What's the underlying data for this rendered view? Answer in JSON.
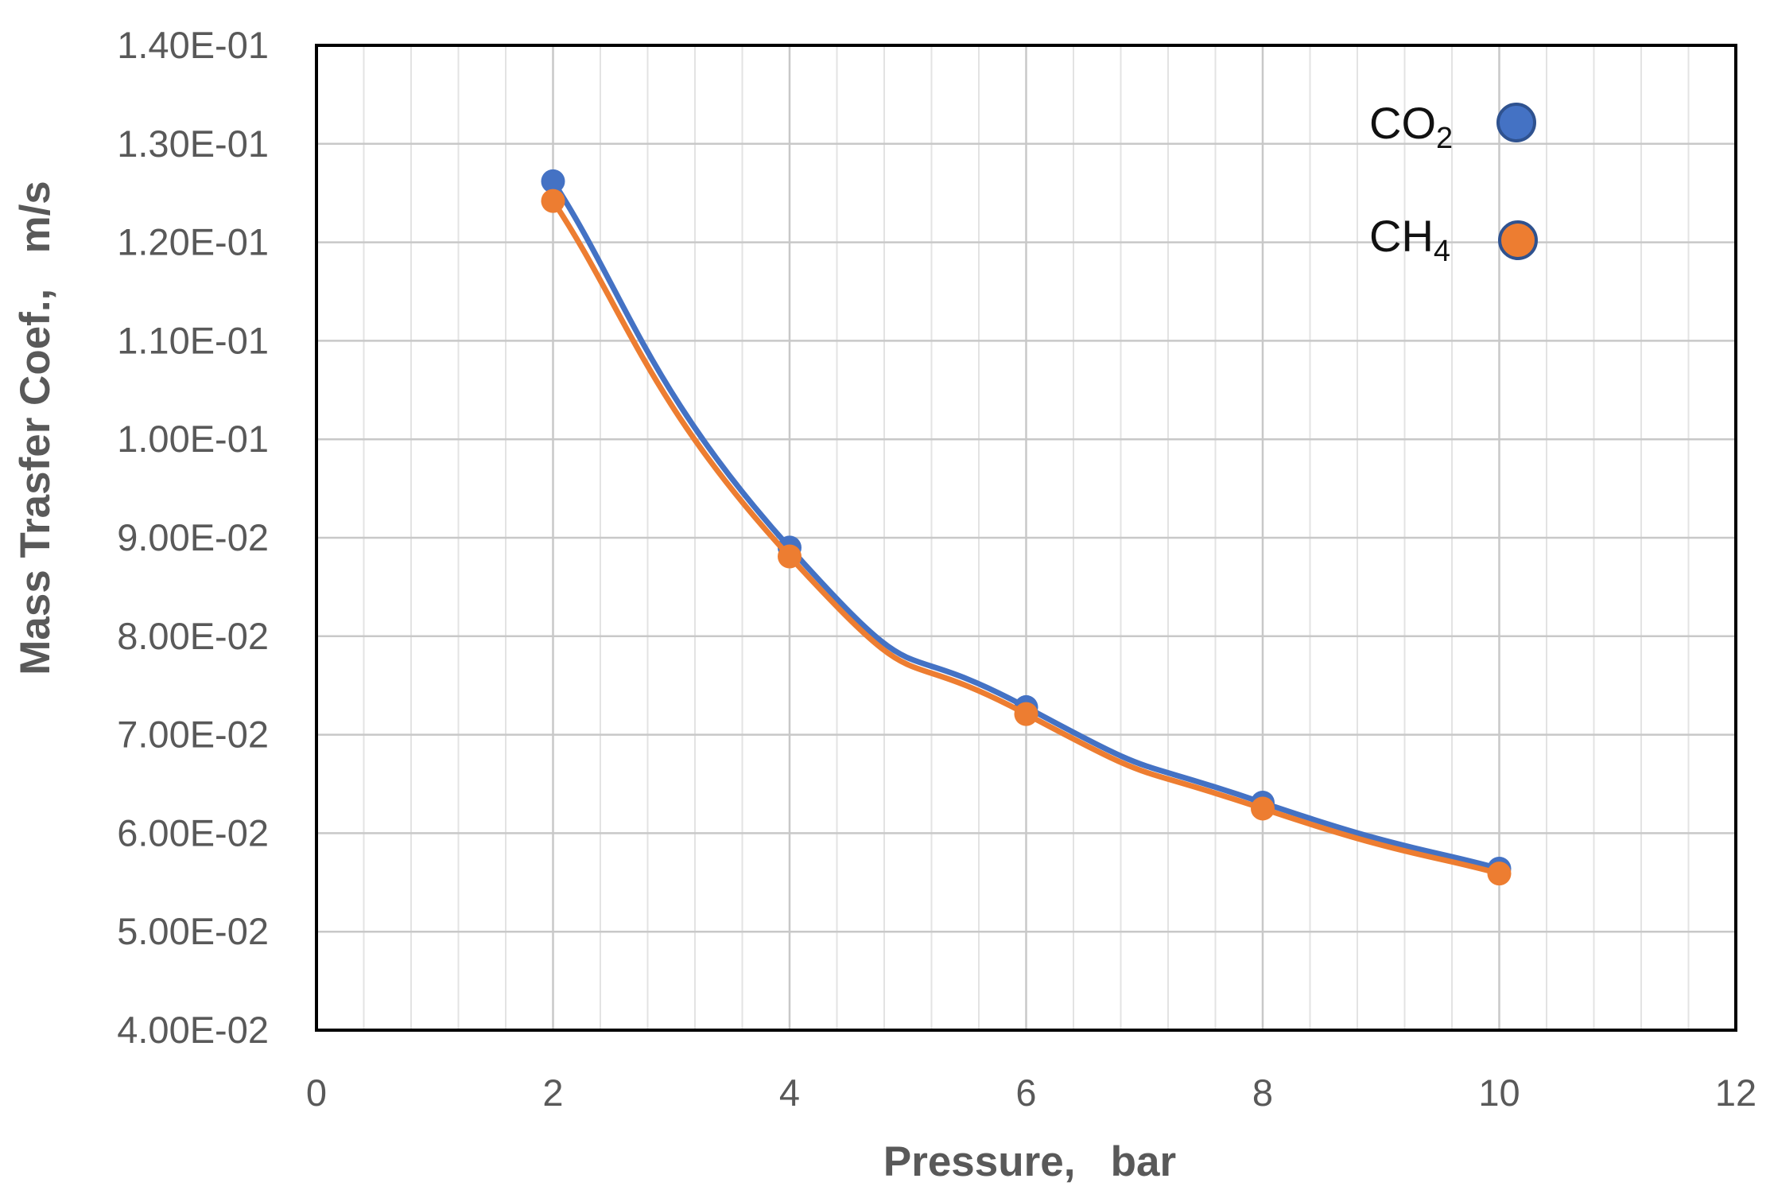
{
  "chart_data": {
    "type": "scatter",
    "xlabel": "Pressure,   bar",
    "ylabel": "Mass Trasfer Coef.,   m/s",
    "xlim": [
      0,
      12
    ],
    "ylim": [
      0.04,
      0.14
    ],
    "x_major_ticks": [
      0,
      2,
      4,
      6,
      8,
      10,
      12
    ],
    "x_tick_labels": [
      "0",
      "2",
      "4",
      "6",
      "8",
      "10",
      "12"
    ],
    "x_minor_step": 0.4,
    "y_major_ticks": [
      0.04,
      0.05,
      0.06,
      0.07,
      0.08,
      0.09,
      0.1,
      0.11,
      0.12,
      0.13,
      0.14
    ],
    "y_tick_labels": [
      "4.00E-02",
      "5.00E-02",
      "6.00E-02",
      "7.00E-02",
      "8.00E-02",
      "9.00E-02",
      "1.00E-01",
      "1.10E-01",
      "1.20E-01",
      "1.30E-01",
      "1.40E-01"
    ],
    "grid": true,
    "smooth_lines": true,
    "legend_position": "top-right",
    "series": [
      {
        "name": "CO2",
        "label_main": "CO",
        "label_sub": "2",
        "color": "#4472c4",
        "x": [
          2,
          4,
          6,
          8,
          10
        ],
        "y": [
          0.1262,
          0.089,
          0.0728,
          0.0631,
          0.0564
        ]
      },
      {
        "name": "CH4",
        "label_main": "CH",
        "label_sub": "4",
        "color": "#ed7d31",
        "x": [
          2,
          4,
          6,
          8,
          10
        ],
        "y": [
          0.1242,
          0.0881,
          0.0721,
          0.0625,
          0.0559
        ]
      }
    ]
  }
}
